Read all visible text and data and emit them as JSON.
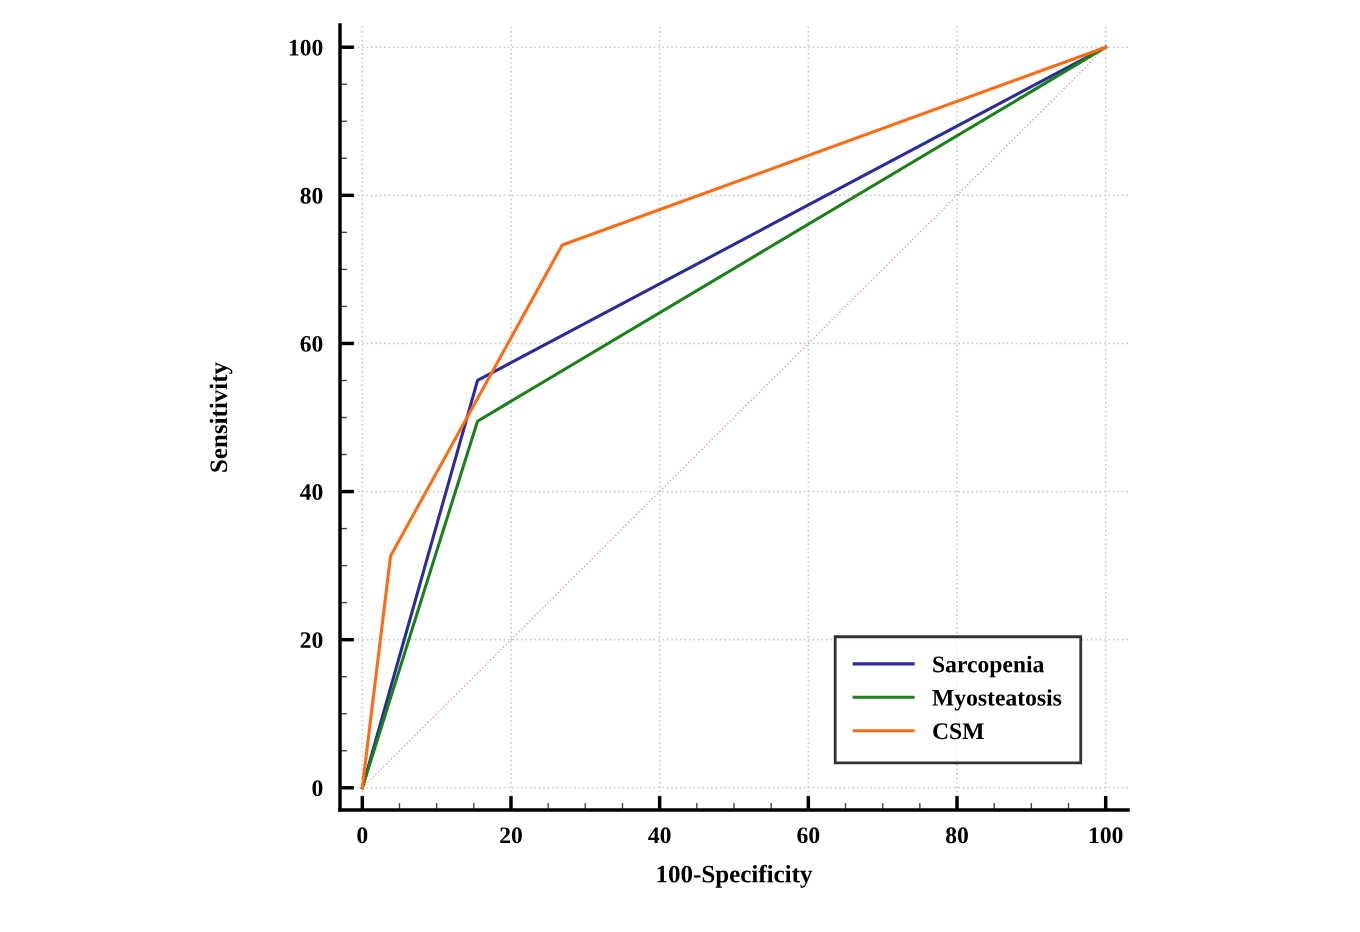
{
  "chart_data": {
    "type": "line",
    "xlabel": "100-Specificity",
    "ylabel": "Sensitivity",
    "series": [
      {
        "type": "line",
        "color": "#e0a0a0",
        "line_style": "dotted",
        "x": [
          0,
          100
        ],
        "values": [
          0,
          100
        ]
      },
      {
        "name": "Sarcopenia",
        "color": "#2b2b9a",
        "x": [
          0,
          15.5,
          100
        ],
        "values": [
          0,
          55.0,
          100
        ]
      },
      {
        "name": "Myosteatosis",
        "color": "#1a801a",
        "x": [
          0,
          15.5,
          100
        ],
        "values": [
          0,
          49.5,
          100
        ]
      },
      {
        "name": "CSM",
        "color": "#ff6a13",
        "x": [
          0,
          3.8,
          26.9,
          100
        ],
        "values": [
          0,
          31.3,
          73.3,
          100
        ]
      }
    ],
    "xlim": [
      -3,
      103
    ],
    "ylim": [
      -3,
      103
    ],
    "xticks": [
      0,
      {
        "value": 5,
        "label": null
      },
      {
        "value": 10,
        "label": null
      },
      {
        "value": 15,
        "label": null
      },
      20,
      {
        "value": 25,
        "label": null
      },
      {
        "value": 30,
        "label": null
      },
      {
        "value": 35,
        "label": null
      },
      40,
      {
        "value": 45,
        "label": null
      },
      {
        "value": 50,
        "label": null
      },
      {
        "value": 55,
        "label": null
      },
      60,
      {
        "value": 65,
        "label": null
      },
      {
        "value": 70,
        "label": null
      },
      {
        "value": 75,
        "label": null
      },
      80,
      {
        "value": 85,
        "label": null
      },
      {
        "value": 90,
        "label": null
      },
      {
        "value": 95,
        "label": null
      },
      100
    ],
    "yticks": [
      0,
      {
        "value": 5,
        "label": null
      },
      {
        "value": 10,
        "label": null
      },
      {
        "value": 15,
        "label": null
      },
      20,
      {
        "value": 25,
        "label": null
      },
      {
        "value": 30,
        "label": null
      },
      {
        "value": 35,
        "label": null
      },
      40,
      {
        "value": 45,
        "label": null
      },
      {
        "value": 50,
        "label": null
      },
      {
        "value": 55,
        "label": null
      },
      60,
      {
        "value": 65,
        "label": null
      },
      {
        "value": 70,
        "label": null
      },
      {
        "value": 75,
        "label": null
      },
      80,
      {
        "value": 85,
        "label": null
      },
      {
        "value": 90,
        "label": null
      },
      {
        "value": 95,
        "label": null
      },
      100
    ],
    "grid": true,
    "legend": "bottom right",
    "marker": "none",
    "line_style": "solid"
  }
}
